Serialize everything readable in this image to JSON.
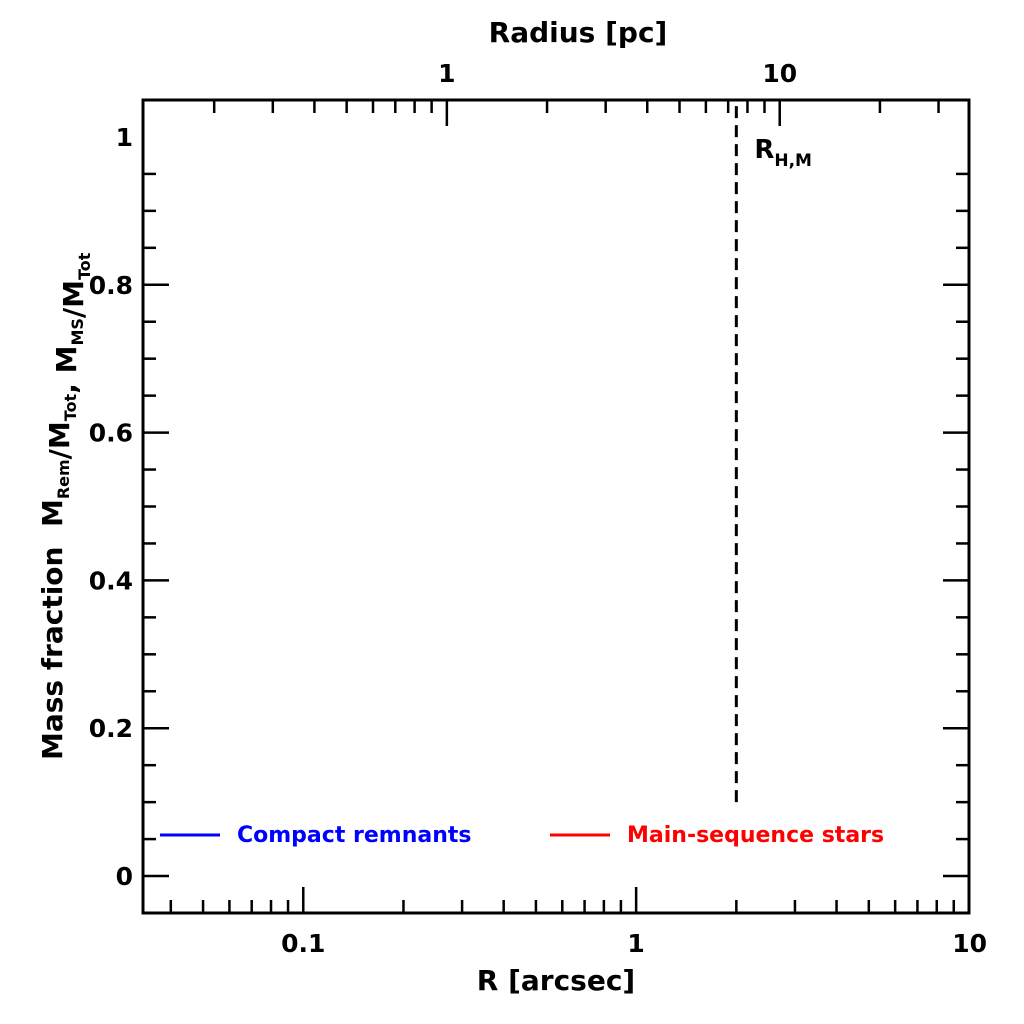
{
  "chart_data": {
    "type": "line",
    "title": "",
    "xlabel": "R [arcsec]",
    "ylabel": {
      "prefix": "Mass fraction",
      "parts": [
        {
          "text": "M",
          "sub": "Rem"
        },
        {
          "text": "/M",
          "sub": "Tot"
        },
        {
          "text": ", M",
          "sub": "MS"
        },
        {
          "text": "/M",
          "sub": "Tot"
        }
      ]
    },
    "top_xlabel": "Radius [pc]",
    "x_scale": "log",
    "xlim": [
      0.033,
      10
    ],
    "ylim": [
      -0.05,
      1.05
    ],
    "x_ticks": [
      {
        "value": 0.1,
        "label": "0.1"
      },
      {
        "value": 1,
        "label": "1"
      },
      {
        "value": 10,
        "label": "10"
      }
    ],
    "y_ticks": [
      {
        "value": 0,
        "label": "0"
      },
      {
        "value": 0.2,
        "label": "0.2"
      },
      {
        "value": 0.4,
        "label": "0.4"
      },
      {
        "value": 0.6,
        "label": "0.6"
      },
      {
        "value": 0.8,
        "label": "0.8"
      },
      {
        "value": 1,
        "label": "1"
      }
    ],
    "top_axis": {
      "scale": "log",
      "unit": "pc",
      "ticks": [
        {
          "value_arcsec": 0.27,
          "label": "1"
        },
        {
          "value_arcsec": 2.7,
          "label": "10"
        }
      ]
    },
    "series": [
      {
        "name": "Compact remnants",
        "color": "#0000ff",
        "points": []
      },
      {
        "name": "Main-sequence stars",
        "color": "#ff0000",
        "points": []
      }
    ],
    "annotations": [
      {
        "type": "vline",
        "x": 2.0,
        "y_from": 0.1,
        "y_to": 1.05,
        "style": "dashed",
        "label": "R",
        "label_sub": "H,M"
      }
    ],
    "legend": "bottom",
    "grid": false
  }
}
